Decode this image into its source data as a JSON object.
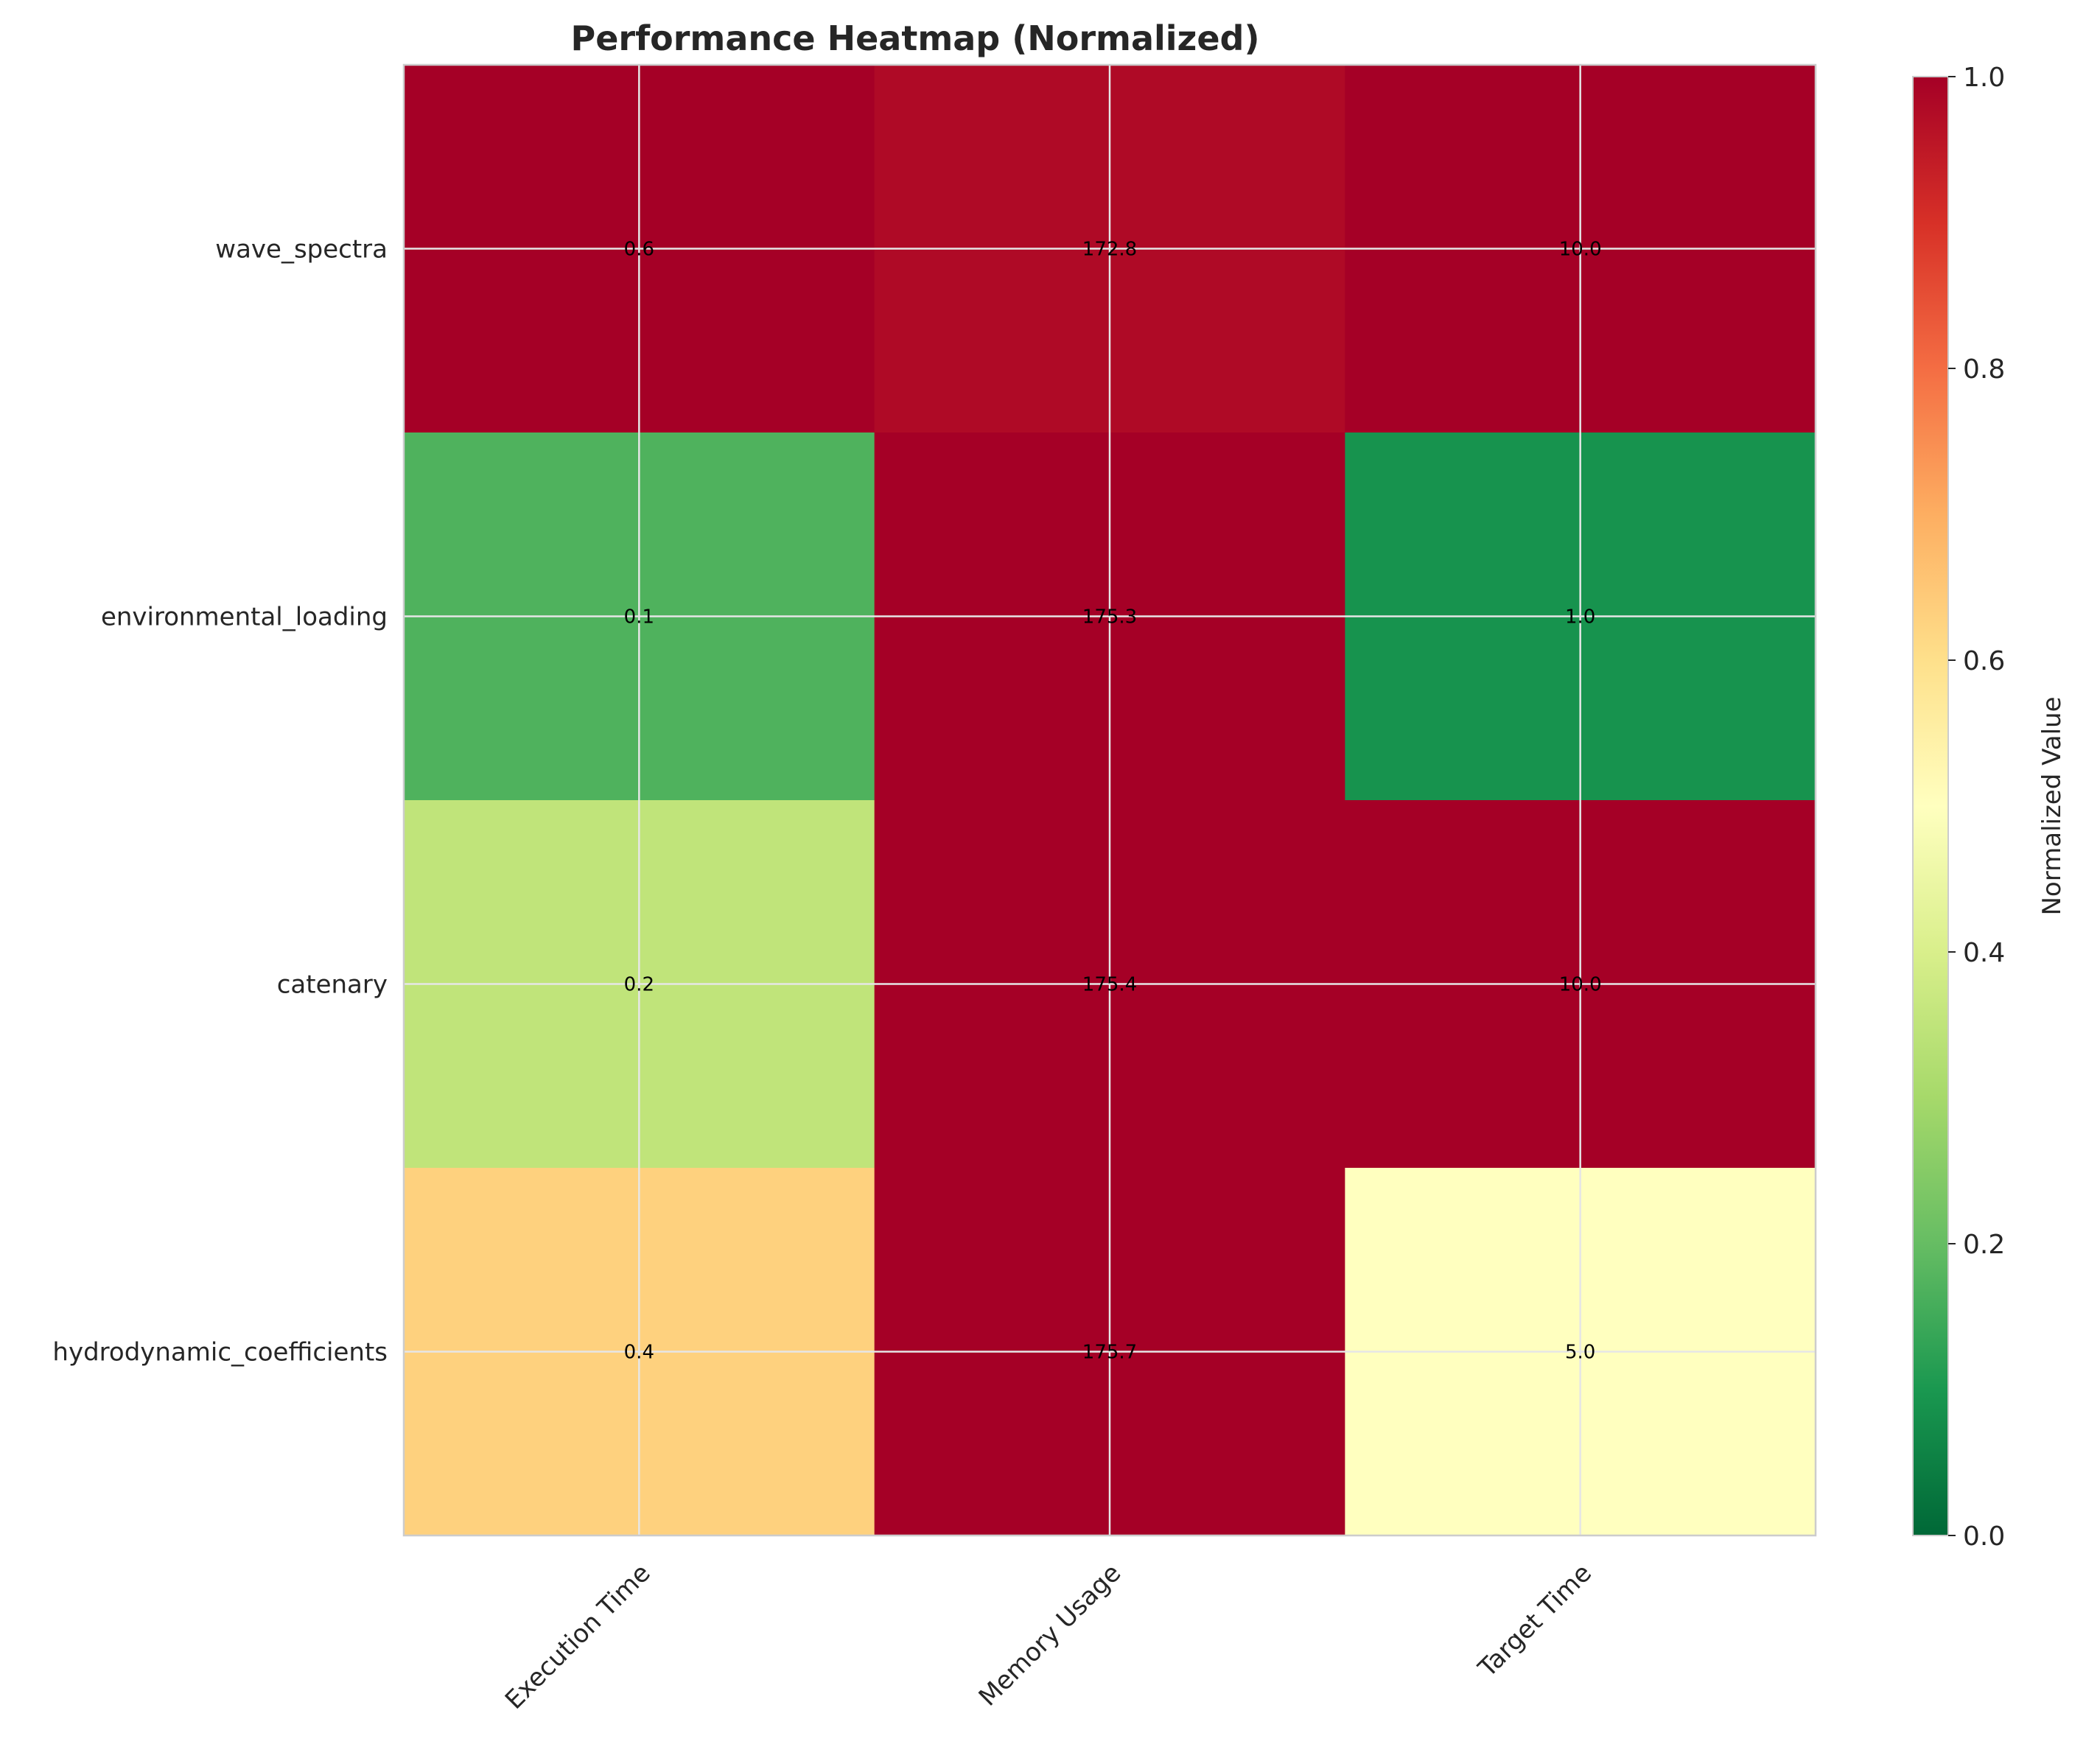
{
  "chart_data": {
    "type": "heatmap",
    "title": "Performance Heatmap (Normalized)",
    "rows": [
      "wave_spectra",
      "environmental_loading",
      "catenary",
      "hydrodynamic_coefficients"
    ],
    "columns": [
      "Execution Time",
      "Memory Usage",
      "Target Time"
    ],
    "values": [
      [
        0.6,
        172.8,
        10.0
      ],
      [
        0.1,
        175.3,
        1.0
      ],
      [
        0.2,
        175.4,
        10.0
      ],
      [
        0.4,
        175.7,
        5.0
      ]
    ],
    "value_labels": [
      [
        "0.6",
        "172.8",
        "10.0"
      ],
      [
        "0.1",
        "175.3",
        "1.0"
      ],
      [
        "0.2",
        "175.4",
        "10.0"
      ],
      [
        "0.4",
        "175.7",
        "5.0"
      ]
    ],
    "normalized": [
      [
        1.0,
        0.98,
        1.0
      ],
      [
        0.17,
        1.0,
        0.09
      ],
      [
        0.35,
        1.0,
        1.0
      ],
      [
        0.63,
        1.0,
        0.5
      ]
    ],
    "colormap": "RdYlGn_r",
    "colorbar": {
      "label": "Normalized Value",
      "range": [
        0,
        1
      ],
      "ticks": [
        "0.0",
        "0.2",
        "0.4",
        "0.6",
        "0.8",
        "1.0"
      ]
    },
    "grid": true
  }
}
